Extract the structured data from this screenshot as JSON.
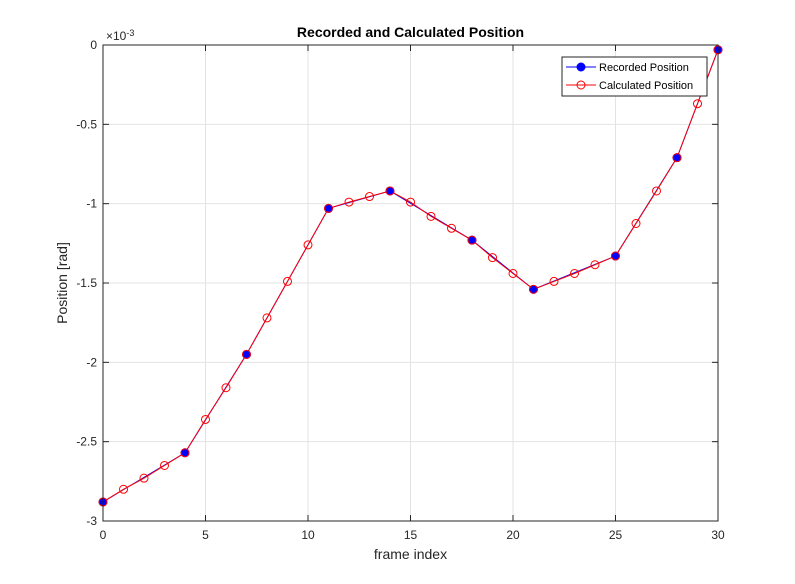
{
  "chart_data": {
    "type": "line",
    "title": "Recorded and Calculated Position",
    "xlabel": "frame index",
    "ylabel": "Position [rad]",
    "y_exponent_label": "×10",
    "y_exponent_power": "-3",
    "xlim": [
      0,
      30
    ],
    "ylim": [
      -3,
      0
    ],
    "xticks": [
      0,
      5,
      10,
      15,
      20,
      25,
      30
    ],
    "yticks": [
      -3,
      -2.5,
      -2,
      -1.5,
      -1,
      -0.5,
      0
    ],
    "ytick_labels": [
      "-3",
      "-2.5",
      "-2",
      "-1.5",
      "-1",
      "-0.5",
      "0"
    ],
    "grid": true,
    "legend_position": "top-right",
    "series": [
      {
        "name": "Recorded Position",
        "color": "#0000ff",
        "marker": "filled-circle",
        "x": [
          0,
          4,
          7,
          11,
          14,
          18,
          21,
          25,
          28,
          30
        ],
        "y": [
          -2.88,
          -2.57,
          -1.95,
          -1.03,
          -0.92,
          -1.23,
          -1.54,
          -1.33,
          -0.71,
          -0.03
        ]
      },
      {
        "name": "Calculated Position",
        "color": "#ff0000",
        "marker": "open-circle",
        "x": [
          0,
          1,
          2,
          3,
          4,
          5,
          6,
          7,
          8,
          9,
          10,
          11,
          12,
          13,
          14,
          15,
          16,
          17,
          18,
          19,
          20,
          21,
          22,
          23,
          24,
          25,
          26,
          27,
          28,
          29,
          30
        ],
        "y": [
          -2.88,
          -2.8,
          -2.73,
          -2.65,
          -2.57,
          -2.36,
          -2.16,
          -1.95,
          -1.72,
          -1.49,
          -1.26,
          -1.03,
          -0.99,
          -0.955,
          -0.92,
          -0.99,
          -1.08,
          -1.155,
          -1.23,
          -1.34,
          -1.44,
          -1.54,
          -1.49,
          -1.44,
          -1.385,
          -1.33,
          -1.125,
          -0.92,
          -0.71,
          -0.37,
          -0.03
        ]
      }
    ]
  }
}
